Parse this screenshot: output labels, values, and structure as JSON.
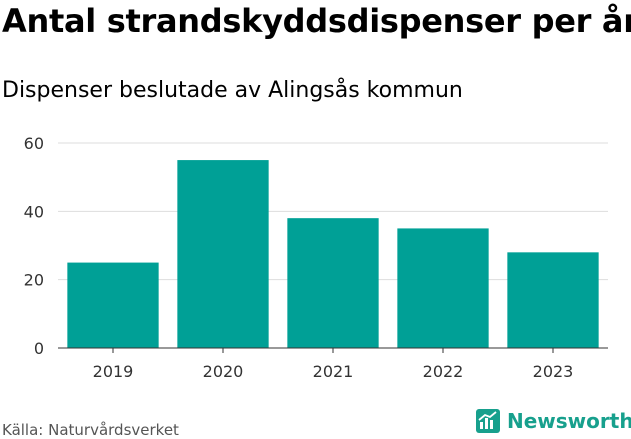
{
  "title": "Antal strandskyddsdispenser per år",
  "subtitle": "Dispenser beslutade av Alingsås kommun",
  "source": "Källa: Naturvårdsverket",
  "brand": {
    "name": "Newsworthy",
    "icon": "newsworthy-logo-icon",
    "color": "#17a08d"
  },
  "colors": {
    "bar": "#00a096",
    "grid": "#dddddd",
    "axis": "#333333"
  },
  "chart_data": {
    "type": "bar",
    "title": "Antal strandskyddsdispenser per år",
    "subtitle": "Dispenser beslutade av Alingsås kommun",
    "xlabel": "",
    "ylabel": "",
    "categories": [
      "2019",
      "2020",
      "2021",
      "2022",
      "2023"
    ],
    "values": [
      25,
      55,
      38,
      35,
      28
    ],
    "ylim": [
      0,
      60
    ],
    "yticks": [
      0,
      20,
      40,
      60
    ],
    "grid": true
  }
}
